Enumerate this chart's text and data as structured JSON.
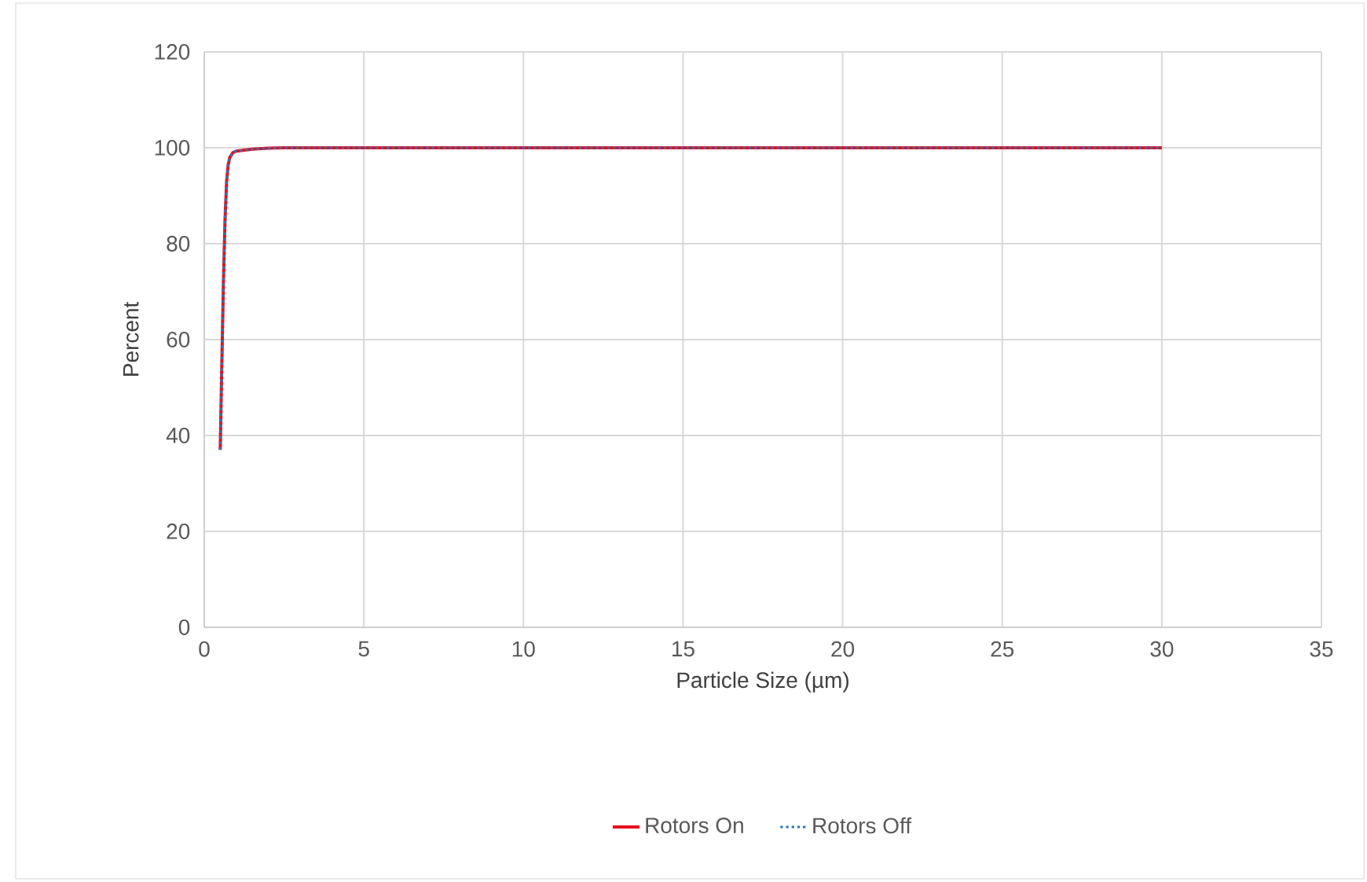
{
  "chart_data": {
    "type": "line",
    "xlabel": "Particle Size (µm)",
    "ylabel": "Percent",
    "xlim": [
      0,
      35
    ],
    "xticks": [
      0,
      5,
      10,
      15,
      20,
      25,
      30,
      35
    ],
    "ylim": [
      0,
      120
    ],
    "yticks": [
      0,
      20,
      40,
      60,
      80,
      100,
      120
    ],
    "grid": true,
    "legend": "bottom",
    "marker": "none",
    "series": [
      {
        "name": "Rotors On",
        "color": "#e8101e",
        "line_style": "solid",
        "x": [
          0.5,
          0.55,
          0.6,
          0.65,
          0.7,
          0.75,
          0.8,
          0.9,
          1,
          1.5,
          2,
          2.5,
          30
        ],
        "values": [
          37,
          55,
          72,
          85,
          93,
          96.5,
          98,
          99,
          99.3,
          99.7,
          99.9,
          100,
          100
        ]
      },
      {
        "name": "Rotors Off",
        "color": "#2e75b6",
        "line_style": "dotted",
        "x": [
          0.5,
          0.55,
          0.6,
          0.65,
          0.7,
          0.75,
          0.8,
          0.9,
          1,
          1.5,
          2,
          2.5,
          30
        ],
        "values": [
          37,
          55,
          72,
          85,
          93,
          96.5,
          98,
          99,
          99.3,
          99.7,
          99.9,
          100,
          100
        ]
      }
    ]
  }
}
